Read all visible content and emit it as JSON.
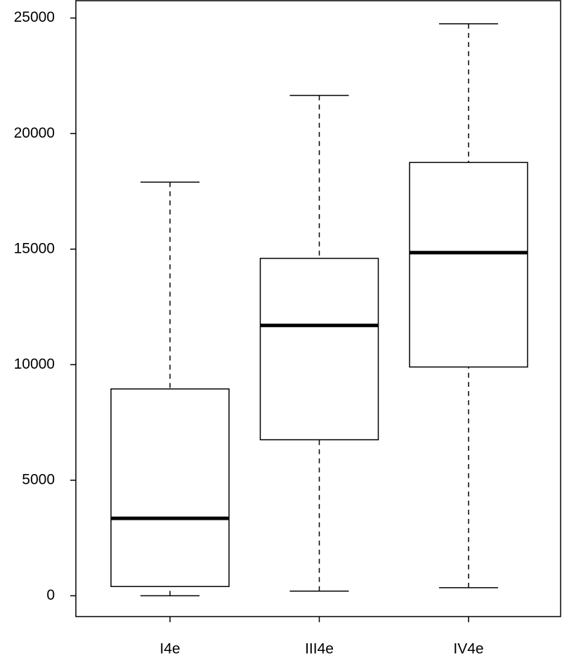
{
  "chart_data": {
    "type": "boxplot",
    "categories": [
      "I4e",
      "III4e",
      "IV4e"
    ],
    "min": [
      0,
      200,
      350
    ],
    "q1": [
      400,
      6750,
      9900
    ],
    "median": [
      3350,
      11700,
      14850
    ],
    "q3": [
      8950,
      14600,
      18750
    ],
    "max": [
      17900,
      21650,
      24750
    ],
    "color": "#000000",
    "ylim": [
      -900,
      25750
    ],
    "yticks": [
      0,
      5000,
      10000,
      15000,
      20000,
      25000
    ]
  }
}
